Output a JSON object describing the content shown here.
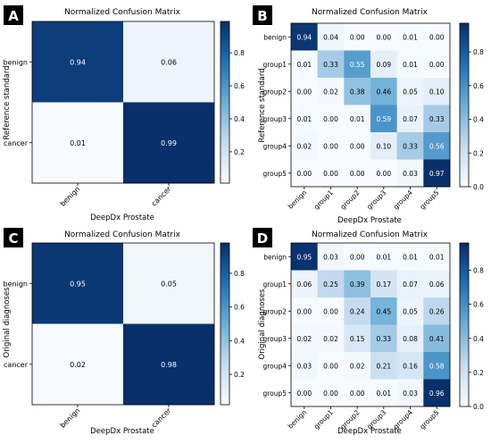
{
  "chart_data": [
    {
      "type": "heatmap",
      "panel_label": "A",
      "title": "Normalized Confusion Matrix",
      "xlabel": "DeepDx Prostate",
      "ylabel": "Reference standard",
      "row_labels": [
        "benign",
        "cancer"
      ],
      "col_labels": [
        "benign",
        "cancer"
      ],
      "values": [
        [
          0.94,
          0.06
        ],
        [
          0.01,
          0.99
        ]
      ],
      "value_labels": [
        [
          "0.94",
          "0.06"
        ],
        [
          "0.01",
          "0.99"
        ]
      ],
      "colorbar_ticks": [
        "0.2",
        "0.4",
        "0.6",
        "0.8"
      ],
      "colorbar_range": [
        0.01,
        0.99
      ],
      "colormap": [
        "#f7fbff",
        "#c6dbef",
        "#6baed6",
        "#2171b5",
        "#08306b"
      ]
    },
    {
      "type": "heatmap",
      "panel_label": "B",
      "title": "Normalized Confusion Matrix",
      "xlabel": "DeepDx Prostate",
      "ylabel": "Reference standard",
      "row_labels": [
        "benign",
        "group1",
        "group2",
        "group3",
        "group4",
        "group5"
      ],
      "col_labels": [
        "benign",
        "group1",
        "group2",
        "group3",
        "group4",
        "group5"
      ],
      "values": [
        [
          0.94,
          0.04,
          0.0,
          0.0,
          0.01,
          0.0
        ],
        [
          0.01,
          0.33,
          0.55,
          0.09,
          0.01,
          0.0
        ],
        [
          0.0,
          0.02,
          0.38,
          0.46,
          0.05,
          0.1
        ],
        [
          0.01,
          0.0,
          0.01,
          0.59,
          0.07,
          0.33
        ],
        [
          0.02,
          0.0,
          0.0,
          0.1,
          0.33,
          0.56
        ],
        [
          0.0,
          0.0,
          0.0,
          0.0,
          0.03,
          0.97
        ]
      ],
      "value_labels": [
        [
          "0.94",
          "0.04",
          "0.00",
          "0.00",
          "0.01",
          "0.00"
        ],
        [
          "0.01",
          "0.33",
          "0.55",
          "0.09",
          "0.01",
          "0.00"
        ],
        [
          "0.00",
          "0.02",
          "0.38",
          "0.46",
          "0.05",
          "0.10"
        ],
        [
          "0.01",
          "0.00",
          "0.01",
          "0.59",
          "0.07",
          "0.33"
        ],
        [
          "0.02",
          "0.00",
          "0.00",
          "0.10",
          "0.33",
          "0.56"
        ],
        [
          "0.00",
          "0.00",
          "0.00",
          "0.00",
          "0.03",
          "0.97"
        ]
      ],
      "colorbar_ticks": [
        "0.0",
        "0.2",
        "0.4",
        "0.6",
        "0.8"
      ],
      "colorbar_range": [
        0.0,
        0.97
      ],
      "colormap": [
        "#f7fbff",
        "#c6dbef",
        "#6baed6",
        "#2171b5",
        "#08306b"
      ]
    },
    {
      "type": "heatmap",
      "panel_label": "C",
      "title": "Normalized Confusion Matrix",
      "xlabel": "DeepDx Prostate",
      "ylabel": "Original diagnoses",
      "row_labels": [
        "benign",
        "cancer"
      ],
      "col_labels": [
        "benign",
        "cancer"
      ],
      "values": [
        [
          0.95,
          0.05
        ],
        [
          0.02,
          0.98
        ]
      ],
      "value_labels": [
        [
          "0.95",
          "0.05"
        ],
        [
          "0.02",
          "0.98"
        ]
      ],
      "colorbar_ticks": [
        "0.2",
        "0.4",
        "0.6",
        "0.8"
      ],
      "colorbar_range": [
        0.02,
        0.98
      ],
      "colormap": [
        "#f7fbff",
        "#c6dbef",
        "#6baed6",
        "#2171b5",
        "#08306b"
      ]
    },
    {
      "type": "heatmap",
      "panel_label": "D",
      "title": "Normalized Confusion Matrix",
      "xlabel": "DeepDx Prostate",
      "ylabel": "Original diagnoses",
      "row_labels": [
        "benign",
        "group1",
        "group2",
        "group3",
        "group4",
        "group5"
      ],
      "col_labels": [
        "benign",
        "group1",
        "group2",
        "group3",
        "group4",
        "group5"
      ],
      "values": [
        [
          0.95,
          0.03,
          0.0,
          0.01,
          0.01,
          0.01
        ],
        [
          0.06,
          0.25,
          0.39,
          0.17,
          0.07,
          0.06
        ],
        [
          0.0,
          0.0,
          0.24,
          0.45,
          0.05,
          0.26
        ],
        [
          0.02,
          0.02,
          0.15,
          0.33,
          0.08,
          0.41
        ],
        [
          0.03,
          0.0,
          0.02,
          0.21,
          0.16,
          0.58
        ],
        [
          0.0,
          0.0,
          0.0,
          0.01,
          0.03,
          0.96
        ]
      ],
      "value_labels": [
        [
          "0.95",
          "0.03",
          "0.00",
          "0.01",
          "0.01",
          "0.01"
        ],
        [
          "0.06",
          "0.25",
          "0.39",
          "0.17",
          "0.07",
          "0.06"
        ],
        [
          "0.00",
          "0.00",
          "0.24",
          "0.45",
          "0.05",
          "0.26"
        ],
        [
          "0.02",
          "0.02",
          "0.15",
          "0.33",
          "0.08",
          "0.41"
        ],
        [
          "0.03",
          "0.00",
          "0.02",
          "0.21",
          "0.16",
          "0.58"
        ],
        [
          "0.00",
          "0.00",
          "0.00",
          "0.01",
          "0.03",
          "0.96"
        ]
      ],
      "colorbar_ticks": [
        "0.0",
        "0.2",
        "0.4",
        "0.6",
        "0.8"
      ],
      "colorbar_range": [
        0.0,
        0.96
      ],
      "colormap": [
        "#f7fbff",
        "#c6dbef",
        "#6baed6",
        "#2171b5",
        "#08306b"
      ]
    }
  ]
}
